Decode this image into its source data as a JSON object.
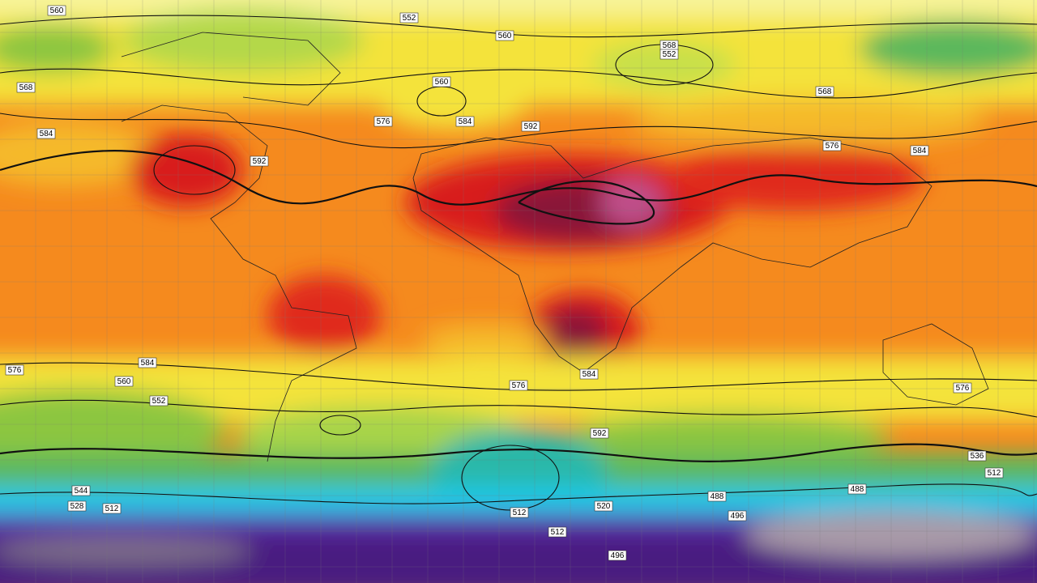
{
  "contour_labels": [
    "560",
    "552",
    "560",
    "568",
    "552",
    "560",
    "568",
    "568",
    "576",
    "584",
    "584",
    "592",
    "576",
    "584",
    "592",
    "584",
    "576",
    "576",
    "584",
    "560",
    "552",
    "576",
    "544",
    "528",
    "512",
    "520",
    "512",
    "512",
    "488",
    "488",
    "496",
    "536",
    "512",
    "592",
    "496"
  ]
}
